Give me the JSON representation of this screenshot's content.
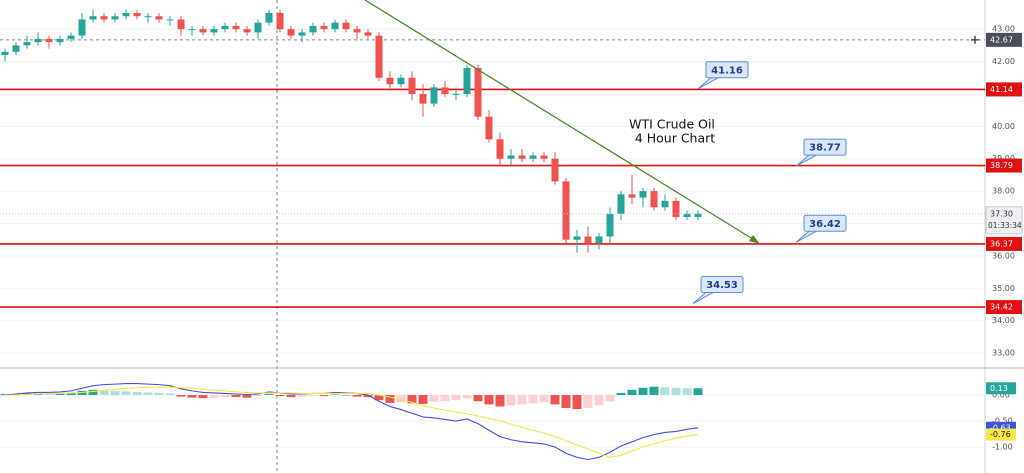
{
  "chart_data": [
    {
      "type": "candlestick",
      "title": [
        "WTI Crude Oil",
        "4 Hour Chart"
      ],
      "up_color": "#26a69a",
      "down_color": "#ef5350",
      "open": [
        42.2,
        42.3,
        42.5,
        42.6,
        42.7,
        42.6,
        42.7,
        42.8,
        43.3,
        43.4,
        43.3,
        43.4,
        43.5,
        43.4,
        43.4,
        43.3,
        43.3,
        43.0,
        43.0,
        42.9,
        43.0,
        43.1,
        43.0,
        42.9,
        43.2,
        43.5,
        43.0,
        42.8,
        42.9,
        43.1,
        43.0,
        43.2,
        43.0,
        42.9,
        42.8,
        41.5,
        41.3,
        41.5,
        41.0,
        40.7,
        41.2,
        41.0,
        41.0,
        41.8,
        40.3,
        39.6,
        39.0,
        39.1,
        39.0,
        39.1,
        39.0,
        38.3,
        36.5,
        36.6,
        36.4,
        36.6,
        37.3,
        37.9,
        37.8,
        38.0,
        37.5,
        37.7,
        37.2,
        37.2
      ],
      "high": [
        42.4,
        42.6,
        42.8,
        42.9,
        42.8,
        42.8,
        42.9,
        43.5,
        43.6,
        43.5,
        43.5,
        43.6,
        43.6,
        43.5,
        43.5,
        43.4,
        43.4,
        43.1,
        43.1,
        43.1,
        43.2,
        43.2,
        43.1,
        43.3,
        43.6,
        43.6,
        43.1,
        43.0,
        43.2,
        43.2,
        43.3,
        43.3,
        43.1,
        43.0,
        42.9,
        41.7,
        41.6,
        41.7,
        41.3,
        41.3,
        41.4,
        41.2,
        41.9,
        41.9,
        40.5,
        39.8,
        39.3,
        39.3,
        39.2,
        39.2,
        39.2,
        38.4,
        36.8,
        36.9,
        36.7,
        37.5,
        38.0,
        38.5,
        38.1,
        38.1,
        37.9,
        37.8,
        37.4,
        37.4
      ],
      "low": [
        42.0,
        42.2,
        42.4,
        42.5,
        42.4,
        42.5,
        42.6,
        42.7,
        43.2,
        43.2,
        43.2,
        43.3,
        43.3,
        43.2,
        43.2,
        43.1,
        42.8,
        42.8,
        42.8,
        42.8,
        42.9,
        42.9,
        42.8,
        42.7,
        43.1,
        42.9,
        42.7,
        42.6,
        42.8,
        42.9,
        42.9,
        42.9,
        42.7,
        42.7,
        41.4,
        41.1,
        41.2,
        40.8,
        40.3,
        40.6,
        40.9,
        40.8,
        40.9,
        40.2,
        39.5,
        38.8,
        38.8,
        38.9,
        38.9,
        38.9,
        38.2,
        36.4,
        36.1,
        36.1,
        36.2,
        36.4,
        37.1,
        37.6,
        37.5,
        37.4,
        37.4,
        37.1,
        37.1,
        37.1
      ],
      "close": [
        42.3,
        42.5,
        42.6,
        42.7,
        42.6,
        42.7,
        42.8,
        43.3,
        43.4,
        43.3,
        43.4,
        43.5,
        43.4,
        43.4,
        43.3,
        43.3,
        43.0,
        43.0,
        42.9,
        43.0,
        43.1,
        43.0,
        42.9,
        43.2,
        43.5,
        43.0,
        42.8,
        42.9,
        43.1,
        43.0,
        43.2,
        43.0,
        42.9,
        42.8,
        41.5,
        41.3,
        41.5,
        41.0,
        40.7,
        41.2,
        41.0,
        41.0,
        41.8,
        40.3,
        39.6,
        39.0,
        39.1,
        39.0,
        39.1,
        39.0,
        38.3,
        36.5,
        36.6,
        36.4,
        36.6,
        37.3,
        37.9,
        37.8,
        38.0,
        37.5,
        37.7,
        37.2,
        37.3,
        37.3
      ],
      "ylim": [
        32.54,
        43.9
      ],
      "yticks": [
        {
          "value": 43,
          "label": "43.00"
        },
        {
          "value": 42,
          "label": "42.00"
        },
        {
          "value": 41,
          "label": "41.00"
        },
        {
          "value": 40,
          "label": "40.00"
        },
        {
          "value": 39,
          "label": "39.00"
        },
        {
          "value": 38,
          "label": "38.00"
        },
        {
          "value": 37,
          "label": "37.00"
        },
        {
          "value": 36,
          "label": "36.00"
        },
        {
          "value": 35,
          "label": "35.00"
        },
        {
          "value": 34,
          "label": "34.00"
        },
        {
          "value": 33,
          "label": "33.00"
        }
      ],
      "grid": true,
      "levels": [
        41.14,
        38.79,
        36.37,
        34.42
      ],
      "level_color": "#e01010",
      "annotations": [
        41.16,
        38.77,
        36.42,
        34.53
      ],
      "crosshair_price": 42.67,
      "last_price": {
        "value": 37.3,
        "label": "37.30"
      },
      "countdown": "01:33:34"
    },
    {
      "type": "macd",
      "histogram": [
        0.02,
        0.02,
        0.03,
        0.03,
        0.02,
        0.03,
        0.04,
        0.08,
        0.1,
        0.09,
        0.08,
        0.07,
        0.06,
        0.05,
        0.04,
        0.03,
        -0.03,
        -0.05,
        -0.06,
        -0.05,
        -0.04,
        -0.04,
        -0.05,
        -0.02,
        0.02,
        -0.02,
        -0.04,
        -0.03,
        -0.02,
        -0.02,
        0.01,
        -0.01,
        -0.03,
        -0.04,
        -0.1,
        -0.15,
        -0.14,
        -0.16,
        -0.17,
        -0.13,
        -0.12,
        -0.1,
        -0.06,
        -0.12,
        -0.18,
        -0.22,
        -0.2,
        -0.18,
        -0.16,
        -0.14,
        -0.18,
        -0.25,
        -0.27,
        -0.25,
        -0.2,
        -0.12,
        0.04,
        0.1,
        0.14,
        0.16,
        0.15,
        0.14,
        0.13,
        0.13
      ],
      "series": [
        {
          "color": "#3f51d6",
          "values": [
            0.0,
            0.02,
            0.04,
            0.05,
            0.05,
            0.06,
            0.08,
            0.13,
            0.18,
            0.2,
            0.21,
            0.22,
            0.22,
            0.21,
            0.2,
            0.18,
            0.12,
            0.08,
            0.05,
            0.04,
            0.03,
            0.02,
            0.01,
            0.02,
            0.06,
            0.04,
            0.02,
            0.02,
            0.03,
            0.03,
            0.05,
            0.04,
            0.03,
            0.0,
            -0.12,
            -0.22,
            -0.28,
            -0.35,
            -0.42,
            -0.44,
            -0.47,
            -0.5,
            -0.46,
            -0.55,
            -0.68,
            -0.8,
            -0.86,
            -0.9,
            -0.92,
            -0.94,
            -1.0,
            -1.12,
            -1.2,
            -1.24,
            -1.2,
            -1.1,
            -0.98,
            -0.9,
            -0.82,
            -0.76,
            -0.72,
            -0.7,
            -0.66,
            -0.63
          ]
        },
        {
          "color": "#f5e64a",
          "values": [
            0.0,
            0.0,
            0.01,
            0.02,
            0.03,
            0.03,
            0.04,
            0.05,
            0.07,
            0.09,
            0.11,
            0.13,
            0.14,
            0.15,
            0.15,
            0.15,
            0.14,
            0.13,
            0.11,
            0.09,
            0.08,
            0.06,
            0.05,
            0.04,
            0.04,
            0.04,
            0.04,
            0.03,
            0.03,
            0.03,
            0.03,
            0.03,
            0.03,
            0.03,
            0.0,
            -0.04,
            -0.09,
            -0.14,
            -0.2,
            -0.25,
            -0.29,
            -0.33,
            -0.36,
            -0.4,
            -0.45,
            -0.5,
            -0.56,
            -0.62,
            -0.68,
            -0.73,
            -0.8,
            -0.88,
            -0.96,
            -1.04,
            -1.12,
            -1.2,
            -1.16,
            -1.08,
            -1.0,
            -0.94,
            -0.88,
            -0.83,
            -0.79,
            -0.76
          ]
        }
      ],
      "ylim": [
        -1.5,
        0.52
      ],
      "yticks": [
        {
          "value": 0,
          "label": "0.00"
        },
        {
          "value": -0.5,
          "label": "-0.50"
        },
        {
          "value": -1,
          "label": "-1.00"
        }
      ]
    }
  ]
}
